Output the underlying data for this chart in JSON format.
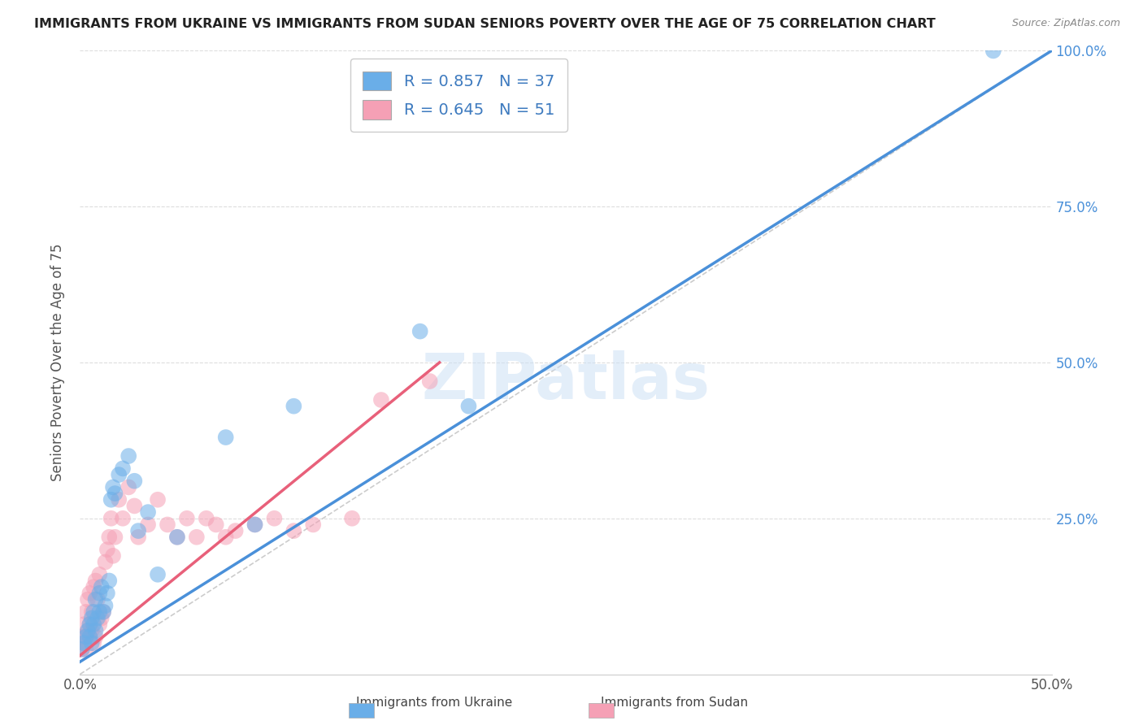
{
  "title": "IMMIGRANTS FROM UKRAINE VS IMMIGRANTS FROM SUDAN SENIORS POVERTY OVER THE AGE OF 75 CORRELATION CHART",
  "source": "Source: ZipAtlas.com",
  "ylabel": "Seniors Poverty Over the Age of 75",
  "xlim": [
    0,
    0.5
  ],
  "ylim": [
    0,
    1.0
  ],
  "xtick_labels": [
    "0.0%",
    "",
    "",
    "",
    "",
    "50.0%"
  ],
  "xtick_vals": [
    0.0,
    0.1,
    0.2,
    0.3,
    0.4,
    0.5
  ],
  "ytick_labels": [
    "25.0%",
    "50.0%",
    "75.0%",
    "100.0%"
  ],
  "ytick_vals": [
    0.25,
    0.5,
    0.75,
    1.0
  ],
  "ukraine_color": "#6aaee8",
  "sudan_color": "#f5a0b5",
  "ukraine_line_color": "#4a90d9",
  "sudan_line_color": "#e8607a",
  "ukraine_R": 0.857,
  "ukraine_N": 37,
  "sudan_R": 0.645,
  "sudan_N": 51,
  "legend_text_color": "#3d7abf",
  "ukraine_scatter_x": [
    0.001,
    0.002,
    0.003,
    0.004,
    0.005,
    0.005,
    0.006,
    0.006,
    0.007,
    0.007,
    0.008,
    0.008,
    0.009,
    0.01,
    0.01,
    0.011,
    0.012,
    0.013,
    0.014,
    0.015,
    0.016,
    0.017,
    0.018,
    0.02,
    0.022,
    0.025,
    0.028,
    0.03,
    0.035,
    0.04,
    0.05,
    0.075,
    0.09,
    0.11,
    0.175,
    0.2,
    0.47
  ],
  "ukraine_scatter_y": [
    0.04,
    0.05,
    0.06,
    0.07,
    0.06,
    0.08,
    0.05,
    0.09,
    0.08,
    0.1,
    0.07,
    0.12,
    0.09,
    0.1,
    0.13,
    0.14,
    0.1,
    0.11,
    0.13,
    0.15,
    0.28,
    0.3,
    0.29,
    0.32,
    0.33,
    0.35,
    0.31,
    0.23,
    0.26,
    0.16,
    0.22,
    0.38,
    0.24,
    0.43,
    0.55,
    0.43,
    1.0
  ],
  "sudan_scatter_x": [
    0.001,
    0.001,
    0.002,
    0.002,
    0.003,
    0.003,
    0.003,
    0.004,
    0.004,
    0.005,
    0.005,
    0.005,
    0.006,
    0.006,
    0.007,
    0.007,
    0.008,
    0.008,
    0.009,
    0.01,
    0.01,
    0.011,
    0.012,
    0.013,
    0.014,
    0.015,
    0.016,
    0.017,
    0.018,
    0.02,
    0.022,
    0.025,
    0.028,
    0.03,
    0.035,
    0.04,
    0.045,
    0.05,
    0.055,
    0.06,
    0.065,
    0.07,
    0.075,
    0.08,
    0.09,
    0.1,
    0.11,
    0.12,
    0.14,
    0.155,
    0.18
  ],
  "sudan_scatter_y": [
    0.04,
    0.06,
    0.05,
    0.08,
    0.04,
    0.06,
    0.1,
    0.07,
    0.12,
    0.06,
    0.08,
    0.13,
    0.07,
    0.1,
    0.05,
    0.14,
    0.06,
    0.15,
    0.12,
    0.08,
    0.16,
    0.09,
    0.1,
    0.18,
    0.2,
    0.22,
    0.25,
    0.19,
    0.22,
    0.28,
    0.25,
    0.3,
    0.27,
    0.22,
    0.24,
    0.28,
    0.24,
    0.22,
    0.25,
    0.22,
    0.25,
    0.24,
    0.22,
    0.23,
    0.24,
    0.25,
    0.23,
    0.24,
    0.25,
    0.44,
    0.47
  ],
  "watermark_text": "ZIPatlas",
  "background_color": "#ffffff",
  "grid_color": "#dddddd",
  "ukraine_line_x0": 0.0,
  "ukraine_line_y0": 0.02,
  "ukraine_line_x1": 0.5,
  "ukraine_line_y1": 1.0,
  "sudan_line_x0": 0.0,
  "sudan_line_y0": 0.03,
  "sudan_line_x1": 0.185,
  "sudan_line_y1": 0.5
}
